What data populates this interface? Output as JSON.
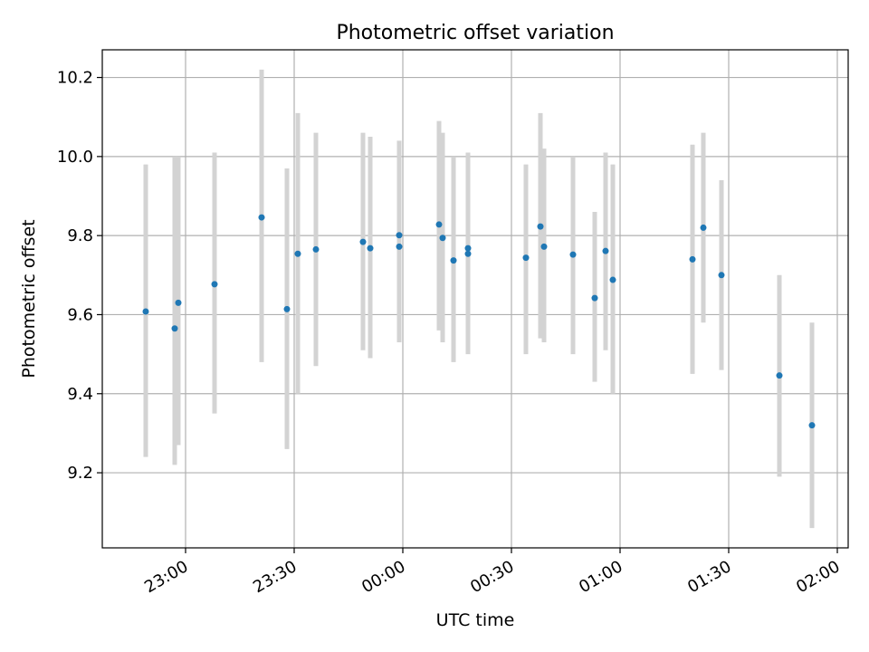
{
  "chart_data": {
    "type": "scatter",
    "title": "Photometric offset variation",
    "xlabel": "UTC time",
    "ylabel": "Photometric offset",
    "x_ticks": [
      "23:00",
      "23:30",
      "00:00",
      "00:30",
      "01:00",
      "01:30",
      "02:00"
    ],
    "y_ticks": [
      "9.2",
      "9.4",
      "9.6",
      "9.8",
      "10.0",
      "10.2"
    ],
    "xlim": [
      "22:37",
      "02:03"
    ],
    "ylim": [
      9.01,
      10.27
    ],
    "grid": true,
    "colors": {
      "point": "#1f77b4",
      "errorbar": "#d3d3d3",
      "grid": "#b0b0b0"
    },
    "series": [
      {
        "points": [
          {
            "x": "22:49",
            "y": 9.608,
            "lo": 9.24,
            "hi": 9.98
          },
          {
            "x": "22:57",
            "y": 9.565,
            "lo": 9.22,
            "hi": 10.0
          },
          {
            "x": "22:58",
            "y": 9.63,
            "lo": 9.27,
            "hi": 10.0
          },
          {
            "x": "23:08",
            "y": 9.677,
            "lo": 9.35,
            "hi": 10.01
          },
          {
            "x": "23:21",
            "y": 9.846,
            "lo": 9.48,
            "hi": 10.22
          },
          {
            "x": "23:28",
            "y": 9.614,
            "lo": 9.26,
            "hi": 9.97
          },
          {
            "x": "23:31",
            "y": 9.754,
            "lo": 9.4,
            "hi": 10.11
          },
          {
            "x": "23:36",
            "y": 9.765,
            "lo": 9.47,
            "hi": 10.06
          },
          {
            "x": "23:49",
            "y": 9.784,
            "lo": 9.51,
            "hi": 10.06
          },
          {
            "x": "23:51",
            "y": 9.768,
            "lo": 9.49,
            "hi": 10.05
          },
          {
            "x": "23:59",
            "y": 9.801,
            "lo": 9.57,
            "hi": 10.04
          },
          {
            "x": "23:59",
            "y": 9.772,
            "lo": 9.53,
            "hi": 10.01
          },
          {
            "x": "00:10",
            "y": 9.828,
            "lo": 9.56,
            "hi": 10.09
          },
          {
            "x": "00:11",
            "y": 9.794,
            "lo": 9.53,
            "hi": 10.06
          },
          {
            "x": "00:14",
            "y": 9.737,
            "lo": 9.48,
            "hi": 10.0
          },
          {
            "x": "00:18",
            "y": 9.754,
            "lo": 9.5,
            "hi": 10.01
          },
          {
            "x": "00:18",
            "y": 9.768,
            "lo": 9.52,
            "hi": 10.01
          },
          {
            "x": "00:34",
            "y": 9.744,
            "lo": 9.5,
            "hi": 9.98
          },
          {
            "x": "00:38",
            "y": 9.823,
            "lo": 9.54,
            "hi": 10.11
          },
          {
            "x": "00:39",
            "y": 9.772,
            "lo": 9.53,
            "hi": 10.02
          },
          {
            "x": "00:47",
            "y": 9.752,
            "lo": 9.5,
            "hi": 10.0
          },
          {
            "x": "00:53",
            "y": 9.642,
            "lo": 9.43,
            "hi": 9.86
          },
          {
            "x": "00:56",
            "y": 9.761,
            "lo": 9.51,
            "hi": 10.01
          },
          {
            "x": "00:58",
            "y": 9.688,
            "lo": 9.4,
            "hi": 9.98
          },
          {
            "x": "01:20",
            "y": 9.74,
            "lo": 9.45,
            "hi": 10.03
          },
          {
            "x": "01:23",
            "y": 9.82,
            "lo": 9.58,
            "hi": 10.06
          },
          {
            "x": "01:28",
            "y": 9.7,
            "lo": 9.46,
            "hi": 9.94
          },
          {
            "x": "01:44",
            "y": 9.446,
            "lo": 9.19,
            "hi": 9.7
          },
          {
            "x": "01:53",
            "y": 9.32,
            "lo": 9.06,
            "hi": 9.58
          }
        ]
      }
    ]
  }
}
